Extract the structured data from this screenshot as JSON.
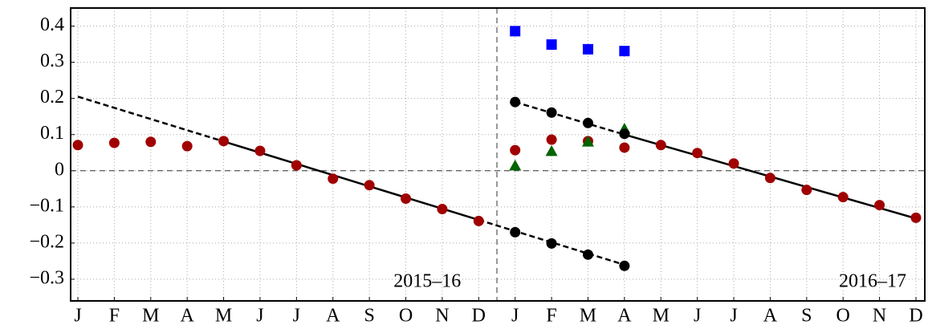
{
  "chart_data": {
    "type": "scatter",
    "categories": [
      "J",
      "F",
      "M",
      "A",
      "M",
      "J",
      "J",
      "A",
      "S",
      "O",
      "N",
      "D",
      "J",
      "F",
      "M",
      "A",
      "M",
      "J",
      "J",
      "A",
      "S",
      "O",
      "N",
      "D"
    ],
    "ylim": [
      -0.36,
      0.45
    ],
    "yticks": [
      {
        "value": -0.3,
        "label": "−0.3"
      },
      {
        "value": -0.2,
        "label": "−0.2"
      },
      {
        "value": -0.1,
        "label": "−0.1"
      },
      0,
      0.1,
      0.2,
      0.3,
      0.4
    ],
    "grid": true,
    "annotations": [
      "2015–16",
      "2016–17"
    ],
    "series": [
      {
        "marker": "circle",
        "color": "#a00000",
        "values": [
          0.071,
          0.077,
          0.08,
          0.068,
          0.082,
          0.055,
          0.015,
          -0.022,
          -0.04,
          -0.077,
          -0.106,
          -0.139,
          0.057,
          0.086,
          0.082,
          0.064,
          0.071,
          0.049,
          0.02,
          -0.02,
          -0.053,
          -0.073,
          -0.095,
          -0.13
        ]
      },
      {
        "marker": "square",
        "color": "#0000ff",
        "values": [
          null,
          null,
          null,
          null,
          null,
          null,
          null,
          null,
          null,
          null,
          null,
          null,
          0.386,
          0.349,
          0.336,
          0.331,
          null,
          null,
          null,
          null,
          null,
          null,
          null,
          null
        ]
      },
      {
        "marker": "triangle",
        "color": "#006400",
        "values": [
          null,
          null,
          null,
          null,
          null,
          null,
          null,
          null,
          null,
          null,
          null,
          null,
          0.013,
          0.053,
          0.079,
          0.115,
          null,
          null,
          null,
          null,
          null,
          null,
          null,
          null
        ]
      },
      {
        "marker": "circle",
        "color": "#000000",
        "values": [
          null,
          null,
          null,
          null,
          null,
          null,
          null,
          null,
          null,
          null,
          null,
          null,
          0.19,
          0.161,
          0.132,
          0.102,
          null,
          null,
          null,
          null,
          null,
          null,
          null,
          null
        ]
      },
      {
        "marker": "circle",
        "color": "#000000",
        "values": [
          null,
          null,
          null,
          null,
          null,
          null,
          null,
          null,
          null,
          null,
          null,
          null,
          -0.17,
          -0.201,
          -0.232,
          -0.263,
          null,
          null,
          null,
          null,
          null,
          null,
          null,
          null
        ]
      },
      {
        "marker": "line",
        "dash": true,
        "color": "#000000",
        "values": [
          0.205,
          0.174,
          0.143,
          0.112,
          0.081,
          null,
          null,
          null,
          null,
          null,
          null,
          -0.136,
          -0.167,
          -0.198,
          -0.229,
          -0.26,
          null,
          null,
          null,
          null,
          null,
          null,
          null,
          null
        ]
      },
      {
        "marker": "line",
        "dash": false,
        "color": "#000000",
        "values": [
          null,
          null,
          null,
          null,
          0.081,
          0.05,
          0.019,
          -0.012,
          -0.043,
          -0.074,
          -0.105,
          -0.136,
          null,
          null,
          null,
          null,
          null,
          null,
          null,
          null,
          null,
          null,
          null,
          null
        ]
      },
      {
        "marker": "line",
        "dash": true,
        "color": "#000000",
        "values": [
          null,
          null,
          null,
          null,
          null,
          null,
          null,
          null,
          null,
          null,
          null,
          null,
          0.19,
          0.16,
          0.13,
          0.1,
          null,
          null,
          null,
          null,
          null,
          null,
          null,
          null
        ]
      },
      {
        "marker": "line",
        "dash": false,
        "color": "#000000",
        "values": [
          null,
          null,
          null,
          null,
          null,
          null,
          null,
          null,
          null,
          null,
          null,
          null,
          null,
          null,
          null,
          0.1,
          0.071,
          0.042,
          0.013,
          -0.016,
          -0.045,
          -0.074,
          -0.103,
          -0.132
        ]
      }
    ]
  }
}
